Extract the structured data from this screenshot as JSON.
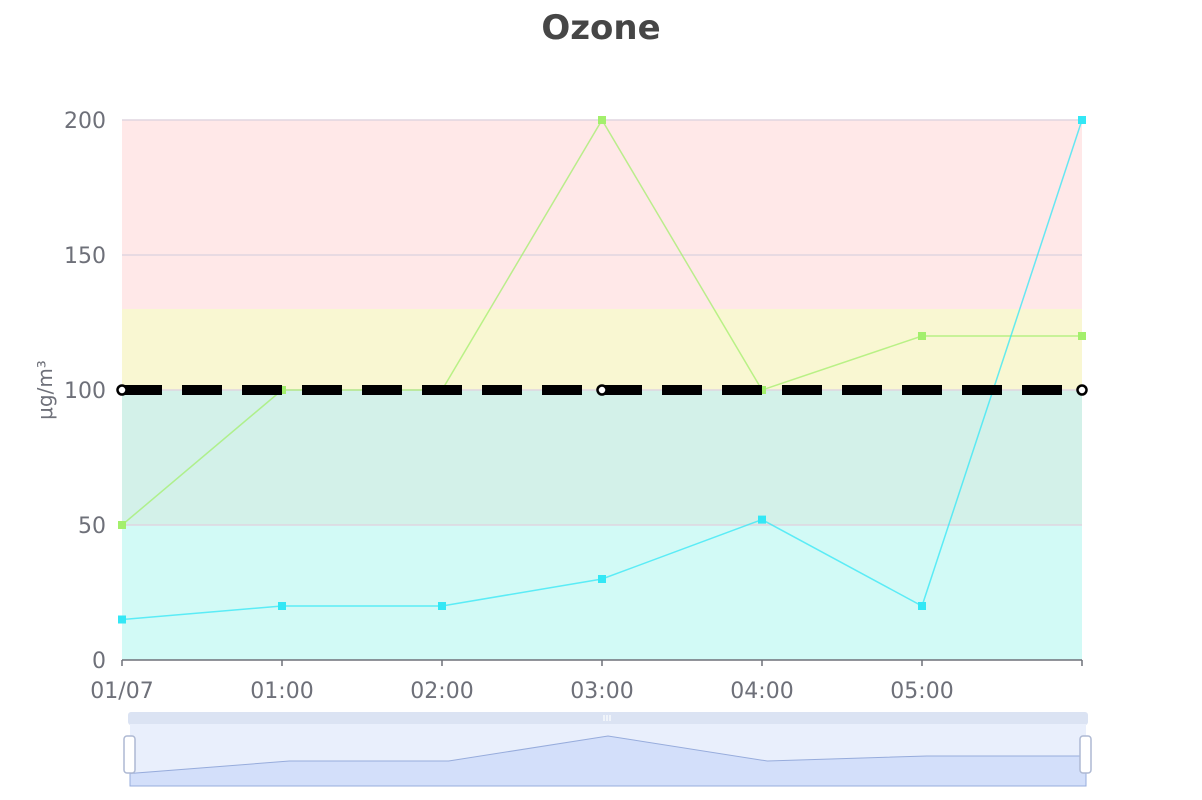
{
  "chart_data": {
    "type": "line",
    "title": "Ozone",
    "ylabel": "μg/m³",
    "xlabel": "",
    "ylim": [
      0,
      200
    ],
    "yticks": [
      0,
      50,
      100,
      150,
      200
    ],
    "categories": [
      "01/07",
      "01:00",
      "02:00",
      "03:00",
      "04:00",
      "05:00",
      ""
    ],
    "series": [
      {
        "name": "",
        "color": "#a3ef6c",
        "values": [
          50,
          100,
          100,
          200,
          100,
          120,
          120
        ]
      },
      {
        "name": "",
        "color": "#33e7f5",
        "values": [
          15,
          20,
          20,
          30,
          52,
          20,
          200
        ]
      }
    ],
    "bands": [
      {
        "from": 0,
        "to": 50,
        "color": "#d2faf6"
      },
      {
        "from": 50,
        "to": 100,
        "color": "#d3f1e9"
      },
      {
        "from": 100,
        "to": 130,
        "color": "#f9f7d2"
      },
      {
        "from": 130,
        "to": 200,
        "color": "#ffe8e8"
      }
    ],
    "threshold": {
      "value": 100,
      "color": "#000000"
    },
    "grid": true,
    "dataZoom": {
      "range_start": "01/07",
      "range_end": ""
    }
  }
}
